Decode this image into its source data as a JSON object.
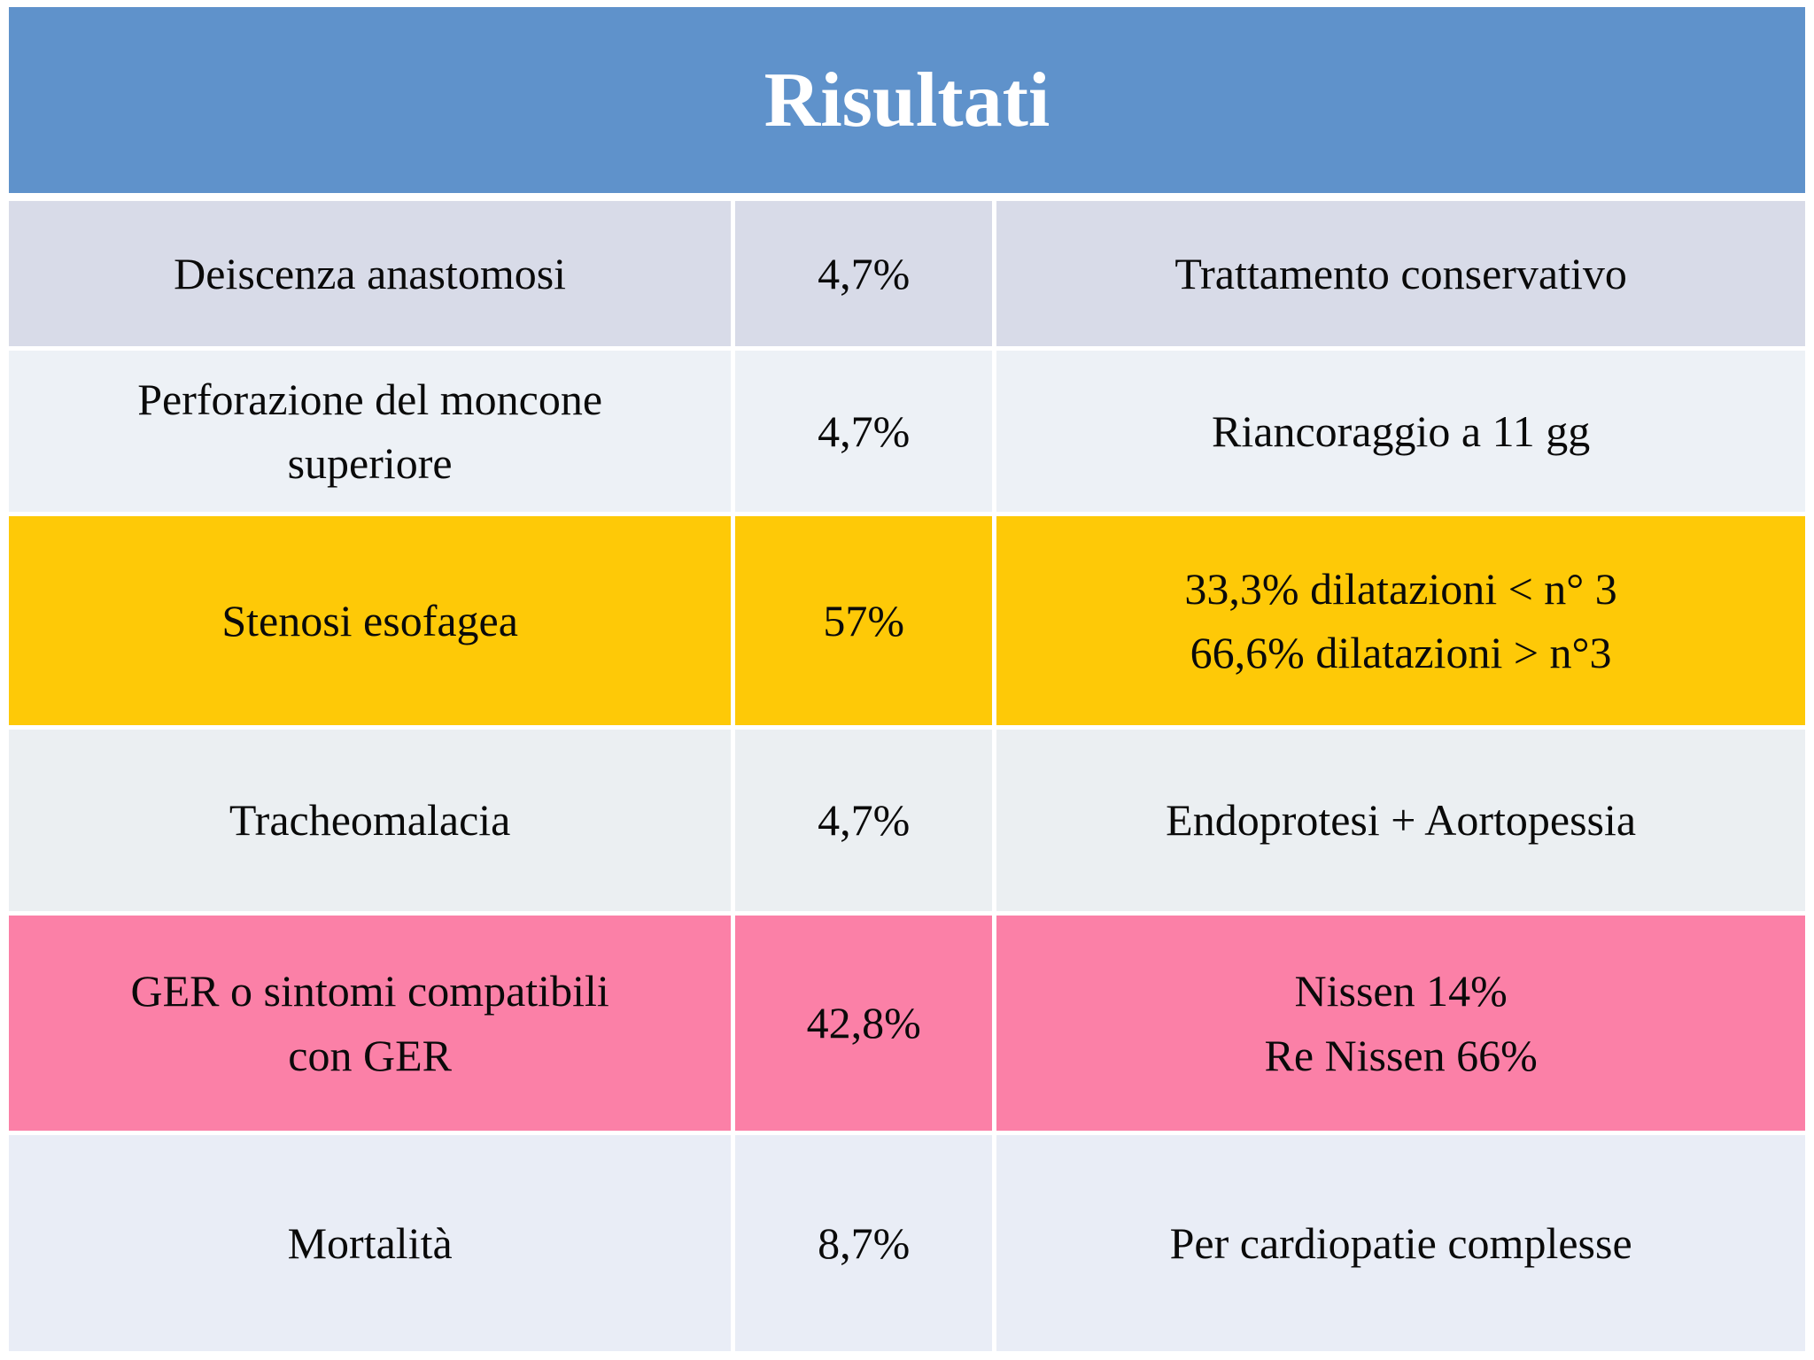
{
  "slide": {
    "title": "Risultati"
  },
  "colors": {
    "header_bg": "#5F92CB",
    "title_text": "#FFFFFF",
    "body_text": "#0A0A0A",
    "page_bg": "#FFFFFF"
  },
  "table": {
    "rows": [
      {
        "label": "Deiscenza anastomosi",
        "rate": "4,7%",
        "treatment_lines": [
          "Trattamento conservativo"
        ],
        "bg": "#D8DBE8"
      },
      {
        "label": "Perforazione del moncone superiore",
        "rate": "4,7%",
        "treatment_lines": [
          "Riancoraggio a 11 gg"
        ],
        "bg": "#EDF1F6"
      },
      {
        "label": "Stenosi esofagea",
        "rate": "57%",
        "treatment_lines": [
          "33,3% dilatazioni < n° 3",
          "66,6% dilatazioni > n°3"
        ],
        "bg": "#FEC907"
      },
      {
        "label": "Tracheomalacia",
        "rate": "4,7%",
        "treatment_lines": [
          "Endoprotesi + Aortopessia"
        ],
        "bg": "#EBEFF2"
      },
      {
        "label": "GER o sintomi compatibili con GER",
        "rate": "42,8%",
        "treatment_lines": [
          "Nissen 14%",
          "Re Nissen 66%"
        ],
        "bg": "#FB80A7"
      },
      {
        "label": "Mortalità",
        "rate": "8,7%",
        "treatment_lines": [
          "Per cardiopatie complesse"
        ],
        "bg": "#E9EDF6"
      }
    ]
  },
  "chart_data": {
    "type": "table",
    "title": "Risultati",
    "rows": [
      [
        "Deiscenza anastomosi",
        "4,7%",
        "Trattamento conservativo"
      ],
      [
        "Perforazione del moncone superiore",
        "4,7%",
        "Riancoraggio a 11 gg"
      ],
      [
        "Stenosi esofagea",
        "57%",
        "33,3% dilatazioni < n° 3\n66,6% dilatazioni > n°3"
      ],
      [
        "Tracheomalacia",
        "4,7%",
        "Endoprotesi + Aortopessia"
      ],
      [
        "GER o sintomi compatibili con GER",
        "42,8%",
        "Nissen 14%\nRe Nissen 66%"
      ],
      [
        "Mortalità",
        "8,7%",
        "Per cardiopatie complesse"
      ]
    ],
    "row_highlight_colors": [
      "#D8DBE8",
      "#EDF1F6",
      "#FEC907",
      "#EBEFF2",
      "#FB80A7",
      "#E9EDF6"
    ],
    "header_color": "#5F92CB"
  }
}
